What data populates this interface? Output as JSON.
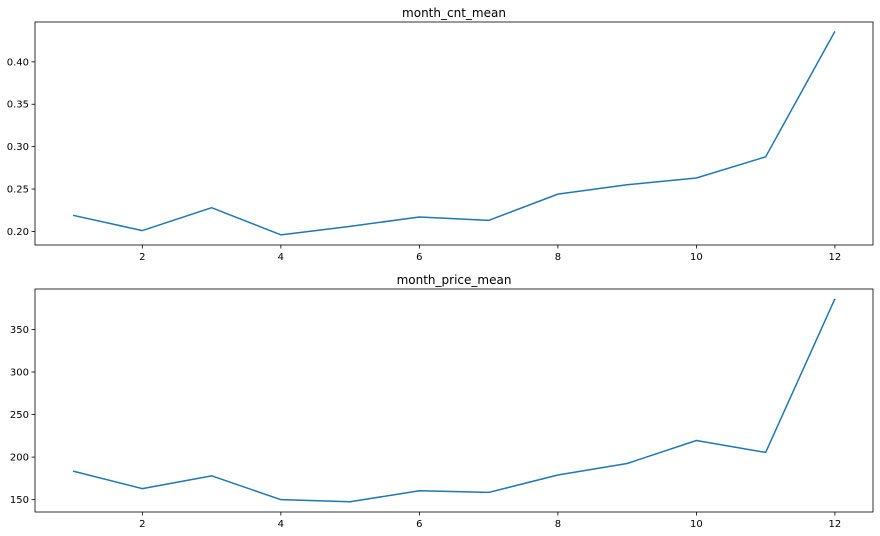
{
  "chart_data": [
    {
      "type": "line",
      "title": "month_cnt_mean",
      "xlabel": "",
      "ylabel": "",
      "x": [
        1,
        2,
        3,
        4,
        5,
        6,
        7,
        8,
        9,
        10,
        11,
        12
      ],
      "series": [
        {
          "values": [
            0.219,
            0.201,
            0.228,
            0.196,
            0.206,
            0.217,
            0.213,
            0.244,
            0.255,
            0.263,
            0.288,
            0.436
          ],
          "color": "#1f77b4"
        }
      ],
      "xlim": [
        0.45,
        12.55
      ],
      "ylim": [
        0.184,
        0.447
      ],
      "xticks": [
        2,
        4,
        6,
        8,
        10,
        12
      ],
      "xtick_labels": [
        "2",
        "4",
        "6",
        "8",
        "10",
        "12"
      ],
      "yticks": [
        0.2,
        0.25,
        0.3,
        0.35,
        0.4
      ],
      "ytick_labels": [
        "0.20",
        "0.25",
        "0.30",
        "0.35",
        "0.40"
      ],
      "grid": false,
      "legend": false
    },
    {
      "type": "line",
      "title": "month_price_mean",
      "xlabel": "",
      "ylabel": "",
      "x": [
        1,
        2,
        3,
        4,
        5,
        6,
        7,
        8,
        9,
        10,
        11,
        12
      ],
      "series": [
        {
          "values": [
            183.5,
            163,
            178,
            150,
            147.5,
            160.5,
            158.5,
            179,
            192.5,
            219.5,
            205.5,
            386
          ],
          "color": "#1f77b4"
        }
      ],
      "xlim": [
        0.45,
        12.55
      ],
      "ylim": [
        135.5,
        397.5
      ],
      "xticks": [
        2,
        4,
        6,
        8,
        10,
        12
      ],
      "xtick_labels": [
        "2",
        "4",
        "6",
        "8",
        "10",
        "12"
      ],
      "yticks": [
        150,
        200,
        250,
        300,
        350
      ],
      "ytick_labels": [
        "150",
        "200",
        "250",
        "300",
        "350"
      ],
      "grid": false,
      "legend": false
    }
  ]
}
